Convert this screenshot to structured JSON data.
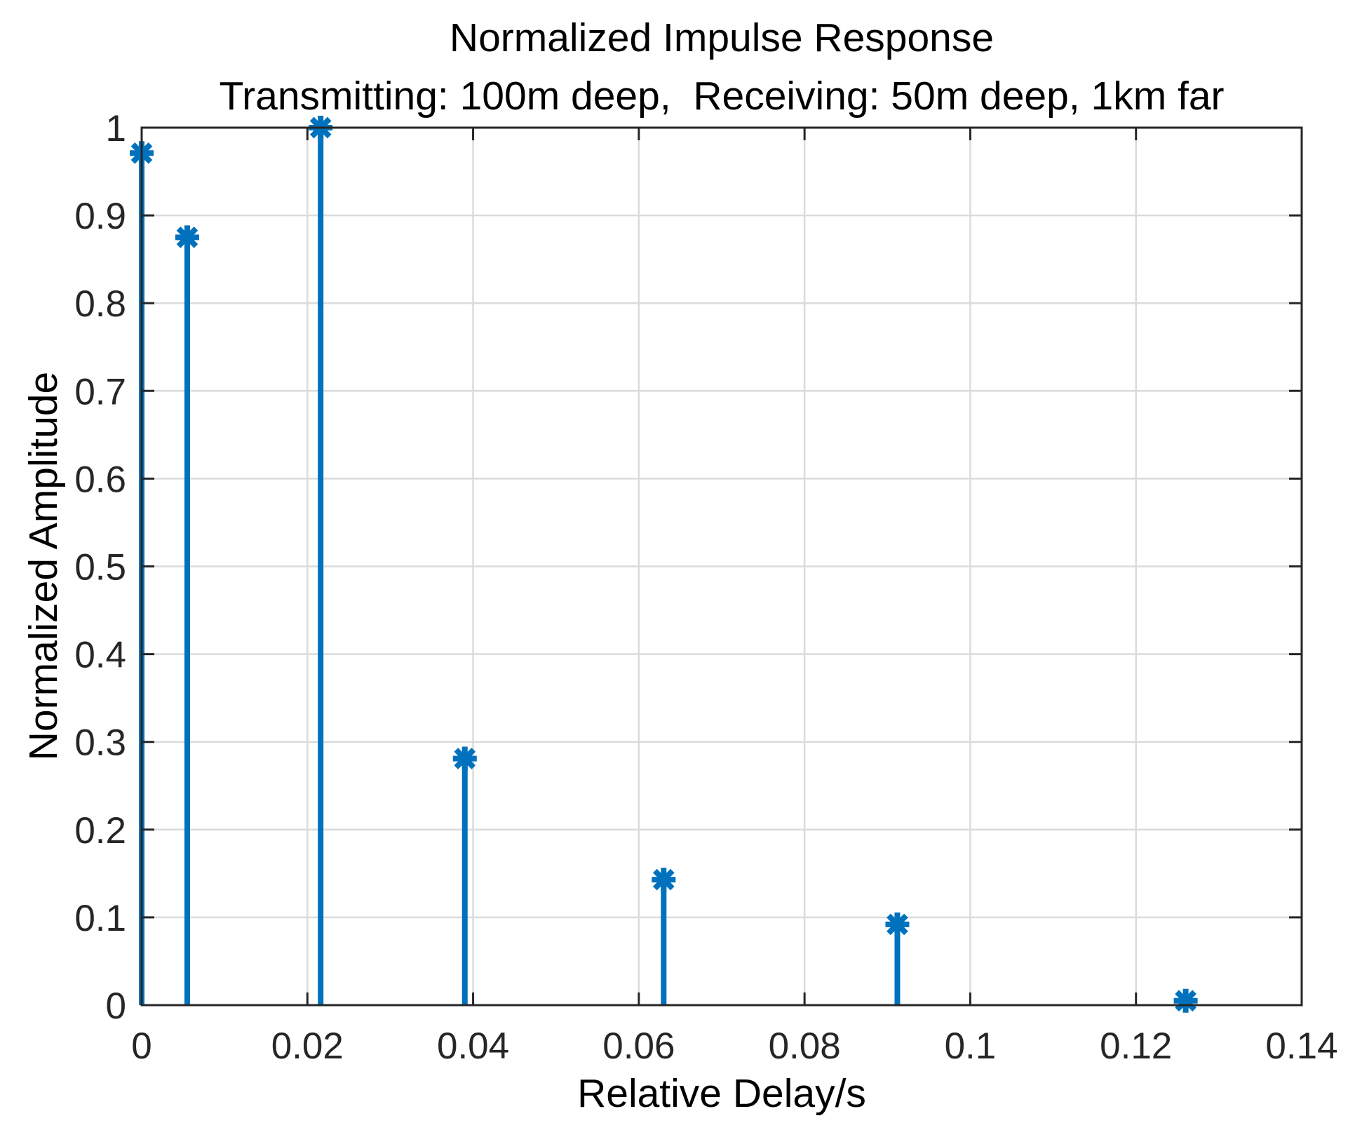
{
  "chart_data": {
    "type": "stem",
    "title": "Normalized Impulse Response",
    "subtitle": "Transmitting: 100m deep,  Receiving: 50m deep, 1km far",
    "xlabel": "Relative Delay/s",
    "ylabel": "Normalized Amplitude",
    "xlim": [
      0,
      0.14
    ],
    "ylim": [
      0,
      1
    ],
    "x": [
      0,
      0.0055,
      0.0216,
      0.039,
      0.063,
      0.0912,
      0.126
    ],
    "y": [
      0.971,
      0.875,
      1.0,
      0.281,
      0.143,
      0.092,
      0.005
    ],
    "xticks": [
      0,
      0.02,
      0.04,
      0.06,
      0.08,
      0.1,
      0.12,
      0.14
    ],
    "xtick_labels": [
      "0",
      "0.02",
      "0.04",
      "0.06",
      "0.08",
      "0.1",
      "0.12",
      "0.14"
    ],
    "yticks": [
      0,
      0.1,
      0.2,
      0.3,
      0.4,
      0.5,
      0.6,
      0.7,
      0.8,
      0.9,
      1
    ],
    "ytick_labels": [
      "0",
      "0.1",
      "0.2",
      "0.3",
      "0.4",
      "0.5",
      "0.6",
      "0.7",
      "0.8",
      "0.9",
      "1"
    ],
    "grid": true,
    "legend": null,
    "marker": "asterisk",
    "colors": {
      "stem": "#0072BD",
      "grid": "#DBDBDB",
      "axis": "#262626",
      "text": "#000000",
      "background": "#FFFFFF"
    }
  }
}
